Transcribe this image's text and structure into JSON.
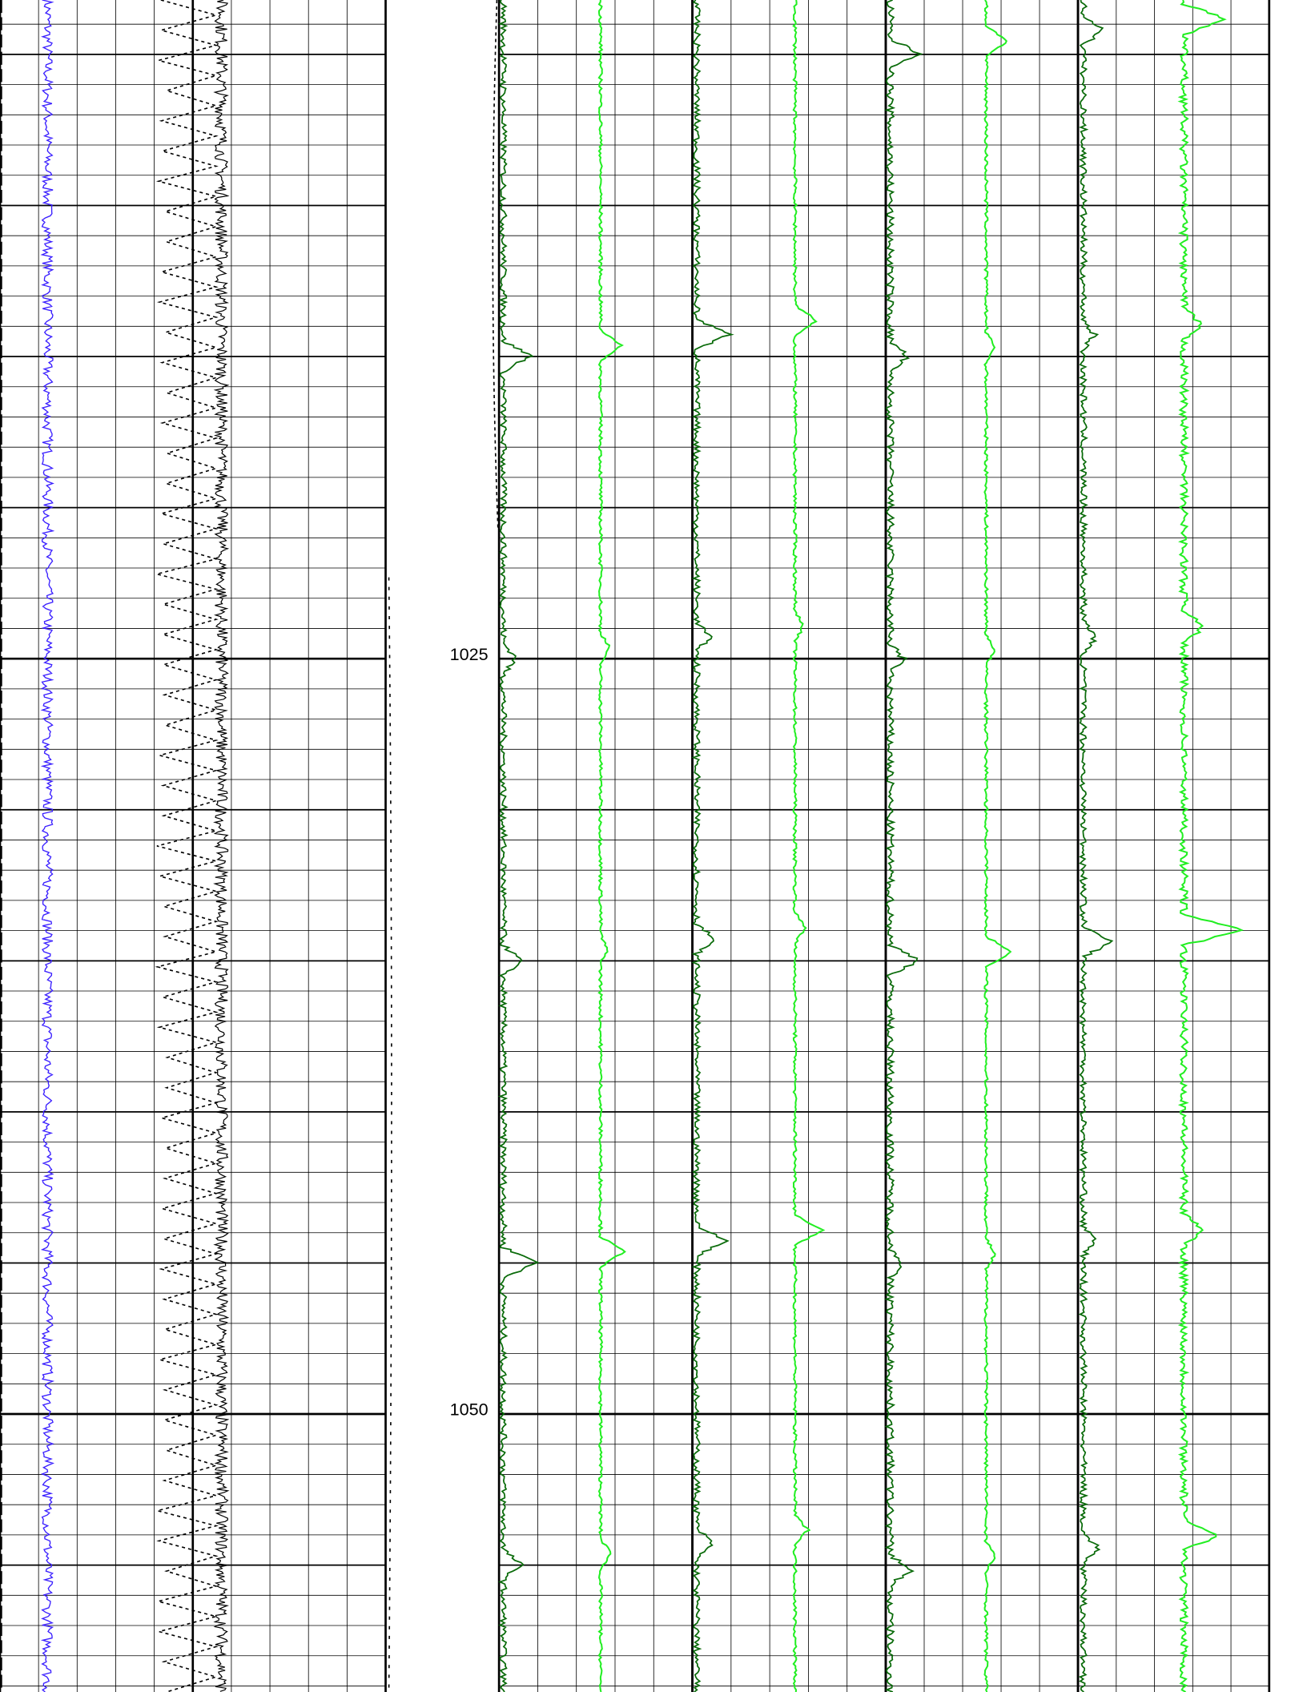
{
  "chart_data": {
    "type": "well-log",
    "ylim": [
      1003.2,
      1059.2
    ],
    "yticks": [
      1025,
      1050
    ],
    "grid": true
  }
}
